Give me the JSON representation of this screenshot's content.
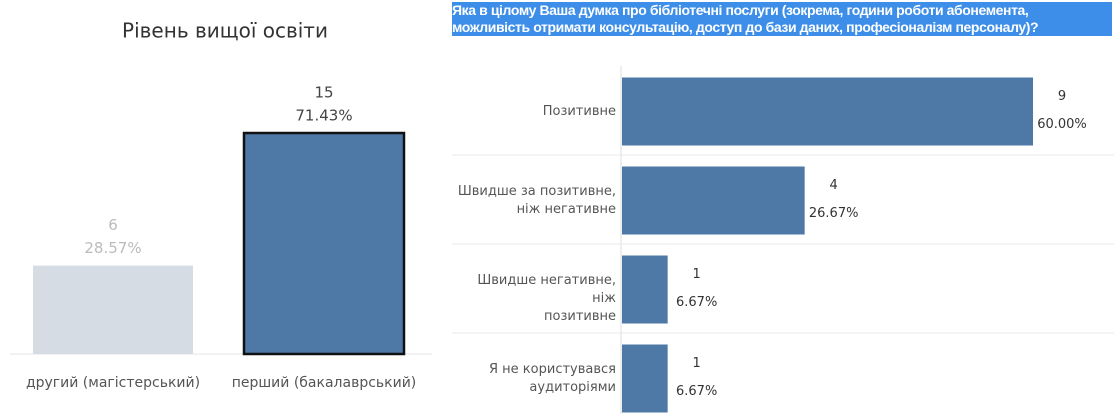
{
  "chart_data": [
    {
      "type": "bar",
      "title": "Рівень вищої освіти",
      "categories": [
        "другий (магістерський)",
        "перший (бакалаврський)"
      ],
      "values": [
        6,
        15
      ],
      "percent_labels": [
        "28.57%",
        "71.43%"
      ],
      "colors": [
        "#d5dce4",
        "#4e79a7"
      ],
      "selected": 1
    },
    {
      "type": "hbar",
      "title": "Яка в цілому Ваша думка про бібліотечні послуги (зокрема, години роботи абонемента,\nможливість отримати консультацію, доступ до бази даних, професіоналізм персоналу)?",
      "categories": [
        "Позитивне",
        "Швидше за позитивне,\nніж негативне",
        "Швидше негативне, ніж\nпозитивне",
        "Я не користувався\nаудиторіями"
      ],
      "values": [
        9,
        4,
        1,
        1
      ],
      "percent_labels": [
        "60.00%",
        "26.67%",
        "6.67%",
        "6.67%"
      ],
      "color": "#4e79a7"
    }
  ]
}
